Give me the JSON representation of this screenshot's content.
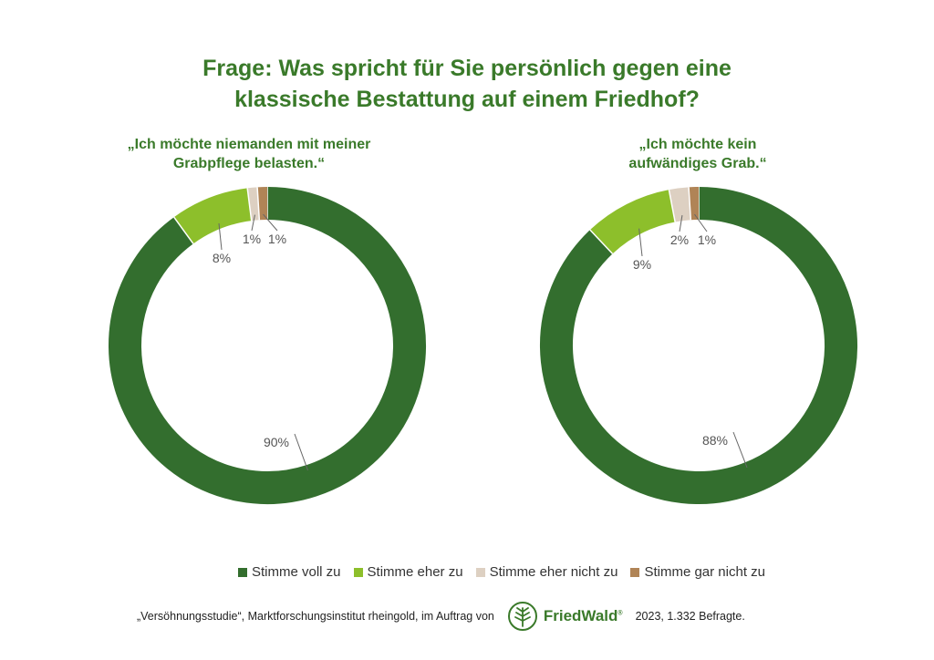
{
  "title": {
    "line1": "Frage: Was spricht für Sie persönlich gegen eine",
    "line2": "klassische Bestattung auf einem Friedhof?"
  },
  "colors": {
    "title": "#3a7a2a",
    "stimme_voll_zu": "#336e2e",
    "stimme_eher_zu": "#8dbf2b",
    "stimme_eher_nicht_zu": "#ddd0c2",
    "stimme_gar_nicht_zu": "#b08456"
  },
  "chart_data": [
    {
      "type": "pie",
      "donut": true,
      "title": [
        "„Ich möchte niemanden mit meiner",
        "Grabpflege belasten.“"
      ],
      "categories": [
        "Stimme voll zu",
        "Stimme eher zu",
        "Stimme eher nicht zu",
        "Stimme gar nicht zu"
      ],
      "values": [
        90,
        8,
        1,
        1
      ],
      "labels": [
        "90%",
        "8%",
        "1%",
        "1%"
      ]
    },
    {
      "type": "pie",
      "donut": true,
      "title": [
        "„Ich möchte kein",
        "aufwändiges Grab.“"
      ],
      "categories": [
        "Stimme voll zu",
        "Stimme eher zu",
        "Stimme eher nicht zu",
        "Stimme gar nicht zu"
      ],
      "values": [
        88,
        9,
        2,
        1
      ],
      "labels": [
        "88%",
        "9%",
        "2%",
        "1%"
      ]
    }
  ],
  "legend": {
    "items": [
      "Stimme voll zu",
      "Stimme eher zu",
      "Stimme eher nicht zu",
      "Stimme gar nicht zu"
    ],
    "placement": "bottom"
  },
  "footer": {
    "source": "„Versöhnungsstudie“, Marktforschungsinstitut rheingold, im Auftrag von",
    "logo_text": "FriedWald",
    "logo_mark": "®",
    "note": "2023, 1.332 Befragte."
  }
}
